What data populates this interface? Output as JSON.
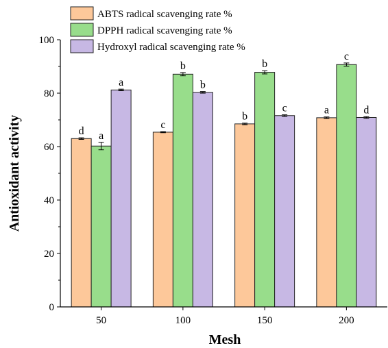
{
  "chart_data": {
    "type": "bar",
    "xlabel": "Mesh",
    "ylabel": "Antioxidant activity",
    "categories": [
      "50",
      "100",
      "150",
      "200"
    ],
    "ylim": [
      0,
      100
    ],
    "yticks": [
      0,
      20,
      40,
      60,
      80,
      100
    ],
    "grid": false,
    "legend_position": "top-left",
    "series": [
      {
        "name": "ABTS radical scavenging rate %",
        "color": "#FDC89A",
        "values": [
          63.0,
          65.4,
          68.5,
          70.8
        ],
        "errors": [
          0.3,
          0.2,
          0.3,
          0.3
        ],
        "significance": [
          "d",
          "c",
          "b",
          "a"
        ]
      },
      {
        "name": "DPPH radical scavenging rate %",
        "color": "#98DD8B",
        "values": [
          60.2,
          87.1,
          87.8,
          90.7
        ],
        "errors": [
          1.4,
          0.6,
          0.6,
          0.6
        ],
        "significance": [
          "a",
          "b",
          "b",
          "c"
        ]
      },
      {
        "name": "Hydroxyl radical scavenging rate %",
        "color": "#C7B8E4",
        "values": [
          81.2,
          80.3,
          71.6,
          70.9
        ],
        "errors": [
          0.3,
          0.3,
          0.3,
          0.3
        ],
        "significance": [
          "a",
          "b",
          "c",
          "d"
        ]
      }
    ]
  }
}
